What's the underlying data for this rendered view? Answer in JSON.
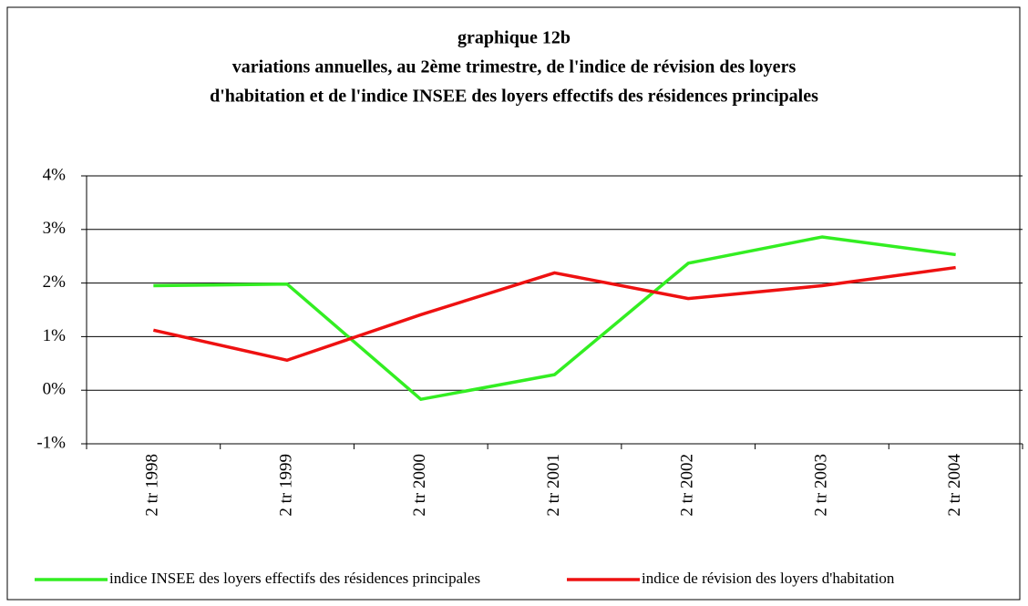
{
  "chart_data": {
    "type": "line",
    "title": [
      "graphique 12b",
      "variations annuelles, au 2ème trimestre, de l'indice de révision des loyers",
      "d'habitation et de l'indice INSEE des loyers effectifs des résidences principales"
    ],
    "categories": [
      "2 tr 1998",
      "2 tr 1999",
      "2 tr 2000",
      "2 tr 2001",
      "2 tr 2002",
      "2 tr 2003",
      "2 tr 2004"
    ],
    "series": [
      {
        "name": "indice INSEE des loyers effectifs des résidences principales",
        "color": "#33ee22",
        "values": [
          1.95,
          1.98,
          -0.17,
          0.29,
          2.37,
          2.86,
          2.53
        ]
      },
      {
        "name": "indice de révision des loyers d'habitation",
        "color": "#ee1111",
        "values": [
          1.12,
          0.56,
          1.41,
          2.19,
          1.71,
          1.95,
          2.29
        ]
      }
    ],
    "ylim": [
      -1,
      4
    ],
    "yticks": [
      {
        "value": -1,
        "label": "-1%"
      },
      {
        "value": 0,
        "label": "0%"
      },
      {
        "value": 1,
        "label": "1%"
      },
      {
        "value": 2,
        "label": "2%"
      },
      {
        "value": 3,
        "label": "3%"
      },
      {
        "value": 4,
        "label": "4%"
      }
    ],
    "grid": true,
    "legend": "bottom"
  }
}
